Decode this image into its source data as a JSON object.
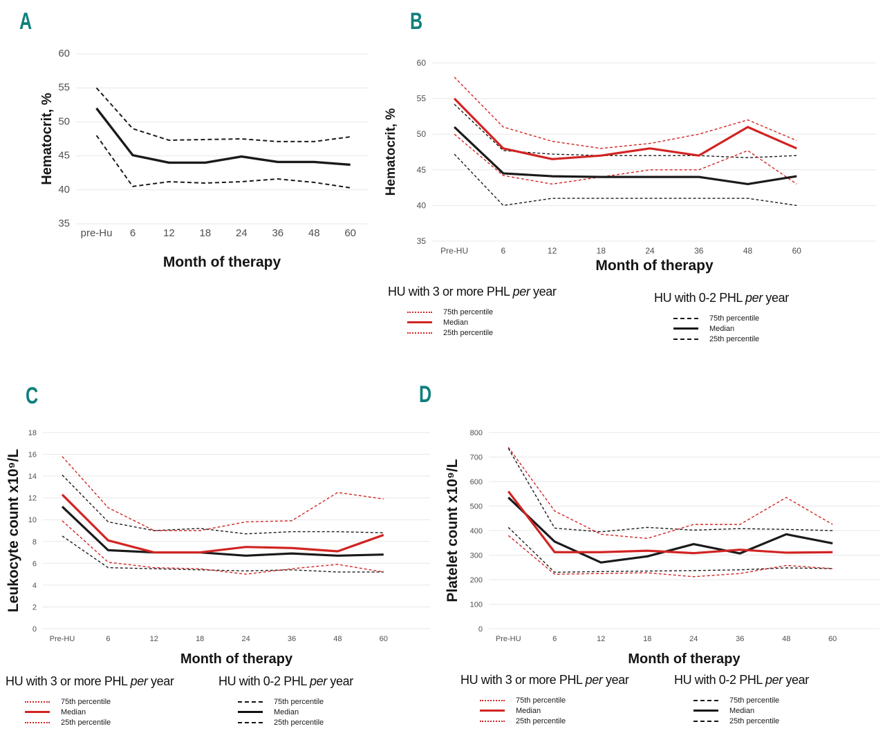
{
  "legends": {
    "red": {
      "prefix": "HU with 3 or more PHL ",
      "italic": "per",
      "suffix": " year",
      "entries": [
        "75th percentile",
        "Median",
        "25th percentile"
      ],
      "color": "#d12422"
    },
    "black": {
      "prefix": "HU with 0-2 PHL ",
      "italic": "per",
      "suffix": " year",
      "entries": [
        "75th percentile",
        "Median",
        "25th percentile"
      ],
      "color": "#1a1a1a"
    }
  },
  "chart_data": [
    {
      "panel_label": "A",
      "type": "line",
      "ylabel": "Hematocrit, %",
      "xlabel": "Month of therapy",
      "categories": [
        "pre-Hu",
        "6",
        "12",
        "18",
        "24",
        "36",
        "48",
        "60"
      ],
      "ylim": [
        35,
        60
      ],
      "yticks": [
        35,
        40,
        45,
        50,
        55,
        60
      ],
      "grid": true,
      "series": [
        {
          "name": "75th percentile",
          "group": "",
          "color": "#1a1a1a",
          "dash": "6 4",
          "width": 2,
          "values": [
            55,
            49,
            47.3,
            47.4,
            47.5,
            47.1,
            47.1,
            47.8
          ]
        },
        {
          "name": "25th percentile",
          "group": "",
          "color": "#1a1a1a",
          "dash": "6 4",
          "width": 2,
          "values": [
            48,
            40.5,
            41.2,
            41.0,
            41.2,
            41.6,
            41.1,
            40.3
          ]
        },
        {
          "name": "Median",
          "group": "",
          "color": "#1a1a1a",
          "dash": "",
          "width": 3.4,
          "values": [
            52,
            45.1,
            44.0,
            44.0,
            44.9,
            44.1,
            44.1,
            43.7
          ]
        }
      ]
    },
    {
      "panel_label": "B",
      "type": "line",
      "ylabel": "Hematocrit, %",
      "xlabel": "Month of therapy",
      "categories": [
        "Pre-HU",
        "6",
        "12",
        "18",
        "24",
        "36",
        "48",
        "60"
      ],
      "ylim": [
        35,
        60
      ],
      "yticks": [
        35,
        40,
        45,
        50,
        55,
        60
      ],
      "grid": true,
      "series": [
        {
          "name": "75th percentile",
          "group": "HU with 0-2 PHL per year",
          "color": "#1a1a1a",
          "dash": "4 3",
          "width": 1.4,
          "values": [
            54.2,
            47.7,
            47.2,
            47.0,
            47.0,
            47.0,
            46.7,
            47.0
          ]
        },
        {
          "name": "25th percentile",
          "group": "HU with 0-2 PHL per year",
          "color": "#1a1a1a",
          "dash": "4 3",
          "width": 1.4,
          "values": [
            47.2,
            40.0,
            41.0,
            41.0,
            41.0,
            41.0,
            41.0,
            40.0
          ]
        },
        {
          "name": "75th percentile",
          "group": "HU with 3 or more PHL per year",
          "color": "#d12422",
          "dash": "4 3",
          "width": 1.4,
          "values": [
            58,
            51,
            49.0,
            48.0,
            48.7,
            50.0,
            52.0,
            49.1
          ]
        },
        {
          "name": "25th percentile",
          "group": "HU with 3 or more PHL per year",
          "color": "#d12422",
          "dash": "4 3",
          "width": 1.4,
          "values": [
            50,
            44.2,
            43.0,
            44.0,
            45.0,
            45.0,
            47.7,
            43.0
          ]
        },
        {
          "name": "Median",
          "group": "HU with 0-2 PHL per year",
          "color": "#1a1a1a",
          "dash": "",
          "width": 3.2,
          "values": [
            51,
            44.5,
            44.1,
            44.0,
            44.0,
            44.0,
            43.0,
            44.1
          ]
        },
        {
          "name": "Median",
          "group": "HU with 3 or more PHL per year",
          "color": "#d12422",
          "dash": "",
          "width": 3.2,
          "values": [
            55,
            48.0,
            46.5,
            47.0,
            48.0,
            47.0,
            51.0,
            48.0
          ]
        }
      ]
    },
    {
      "panel_label": "C",
      "type": "line",
      "ylabel": "Leukocyte count x10⁹/L",
      "xlabel": "Month of therapy",
      "categories": [
        "Pre-HU",
        "6",
        "12",
        "18",
        "24",
        "36",
        "48",
        "60"
      ],
      "ylim": [
        0,
        18
      ],
      "yticks": [
        0,
        2,
        4,
        6,
        8,
        10,
        12,
        14,
        16,
        18
      ],
      "grid": true,
      "series": [
        {
          "name": "75th percentile",
          "group": "HU with 0-2 PHL per year",
          "color": "#1a1a1a",
          "dash": "4 3",
          "width": 1.4,
          "values": [
            14.1,
            9.8,
            9.0,
            9.2,
            8.7,
            8.9,
            8.9,
            8.8
          ]
        },
        {
          "name": "25th percentile",
          "group": "HU with 0-2 PHL per year",
          "color": "#1a1a1a",
          "dash": "4 3",
          "width": 1.4,
          "values": [
            8.5,
            5.6,
            5.5,
            5.4,
            5.3,
            5.4,
            5.2,
            5.2
          ]
        },
        {
          "name": "75th percentile",
          "group": "HU with 3 or more PHL per year",
          "color": "#d12422",
          "dash": "4 3",
          "width": 1.4,
          "values": [
            15.8,
            11.1,
            9.0,
            9.0,
            9.8,
            9.9,
            12.5,
            11.9
          ]
        },
        {
          "name": "25th percentile",
          "group": "HU with 3 or more PHL per year",
          "color": "#d12422",
          "dash": "4 3",
          "width": 1.4,
          "values": [
            9.9,
            6.1,
            5.6,
            5.5,
            5.0,
            5.5,
            5.9,
            5.2
          ]
        },
        {
          "name": "Median",
          "group": "HU with 0-2 PHL per year",
          "color": "#1a1a1a",
          "dash": "",
          "width": 3.2,
          "values": [
            11.2,
            7.2,
            7.0,
            7.0,
            6.7,
            6.9,
            6.7,
            6.8
          ]
        },
        {
          "name": "Median",
          "group": "HU with 3 or more PHL per year",
          "color": "#d12422",
          "dash": "",
          "width": 3.2,
          "values": [
            12.3,
            8.1,
            7.0,
            7.0,
            7.5,
            7.4,
            7.1,
            8.6
          ]
        }
      ]
    },
    {
      "panel_label": "D",
      "type": "line",
      "ylabel": "Platelet count x10⁹/L",
      "xlabel": "Month of therapy",
      "categories": [
        "Pre-HU",
        "6",
        "12",
        "18",
        "24",
        "36",
        "48",
        "60"
      ],
      "ylim": [
        0,
        800
      ],
      "yticks": [
        0,
        100,
        200,
        300,
        400,
        500,
        600,
        700,
        800
      ],
      "grid": true,
      "series": [
        {
          "name": "75th percentile",
          "group": "HU with 0-2 PHL per year",
          "color": "#1a1a1a",
          "dash": "4 3",
          "width": 1.4,
          "values": [
            735,
            410,
            395,
            413,
            402,
            408,
            405,
            400
          ]
        },
        {
          "name": "25th percentile",
          "group": "HU with 0-2 PHL per year",
          "color": "#1a1a1a",
          "dash": "4 3",
          "width": 1.4,
          "values": [
            413,
            230,
            233,
            235,
            237,
            240,
            248,
            245
          ]
        },
        {
          "name": "75th percentile",
          "group": "HU with 3 or more PHL per year",
          "color": "#d12422",
          "dash": "4 3",
          "width": 1.4,
          "values": [
            740,
            480,
            385,
            368,
            425,
            425,
            535,
            425
          ]
        },
        {
          "name": "25th percentile",
          "group": "HU with 3 or more PHL per year",
          "color": "#d12422",
          "dash": "4 3",
          "width": 1.4,
          "values": [
            380,
            222,
            225,
            228,
            212,
            225,
            258,
            245
          ]
        },
        {
          "name": "Median",
          "group": "HU with 0-2 PHL per year",
          "color": "#1a1a1a",
          "dash": "",
          "width": 3.2,
          "values": [
            535,
            355,
            270,
            295,
            345,
            307,
            385,
            348
          ]
        },
        {
          "name": "Median",
          "group": "HU with 3 or more PHL per year",
          "color": "#d12422",
          "dash": "",
          "width": 3.2,
          "values": [
            560,
            312,
            312,
            318,
            308,
            322,
            310,
            312
          ]
        }
      ]
    }
  ]
}
